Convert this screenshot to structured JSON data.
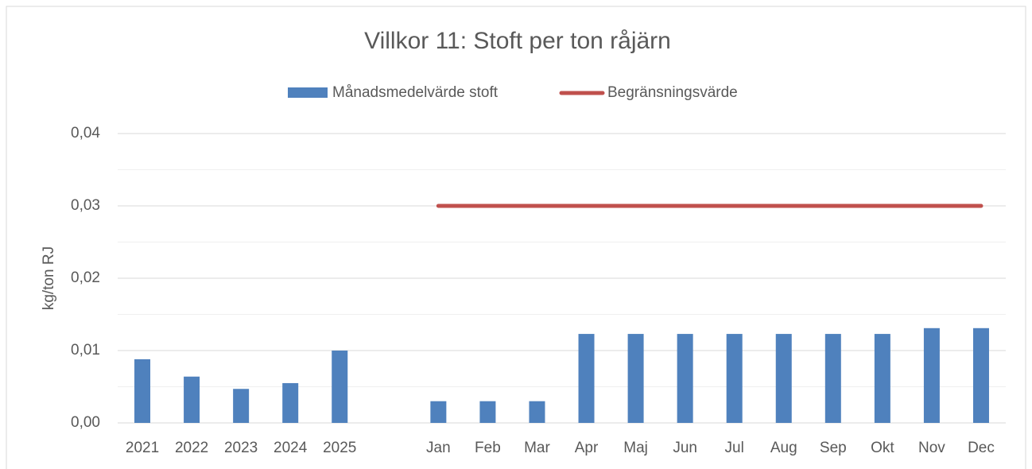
{
  "chart_data": {
    "type": "bar_line",
    "title": "Villkor 11: Stoft per ton råjärn",
    "y_label": "kg/ton RJ",
    "categories": [
      "2021",
      "2022",
      "2023",
      "2024",
      "2025",
      null,
      "Jan",
      "Feb",
      "Mar",
      "Apr",
      "Maj",
      "Jun",
      "Jul",
      "Aug",
      "Sep",
      "Okt",
      "Nov",
      "Dec"
    ],
    "series": [
      {
        "name": "Månadsmedelvärde stoft",
        "type": "bar",
        "color": "#4f81bd",
        "values": [
          0.0088,
          0.0064,
          0.0047,
          0.0055,
          0.01,
          null,
          0.003,
          0.003,
          0.003,
          0.0123,
          0.0123,
          0.0123,
          0.0123,
          0.0123,
          0.0123,
          0.0123,
          0.0131,
          0.0131
        ]
      },
      {
        "name": "Begränsningsvärde",
        "type": "line",
        "color": "#c0504d",
        "values": [
          null,
          null,
          null,
          null,
          null,
          null,
          0.03,
          0.03,
          0.03,
          0.03,
          0.03,
          0.03,
          0.03,
          0.03,
          0.03,
          0.03,
          0.03,
          0.03
        ]
      }
    ],
    "ylim": [
      0,
      0.04
    ],
    "yticks": [
      {
        "value": 0,
        "label": "0,00"
      },
      {
        "value": 0.01,
        "label": "0,01"
      },
      {
        "value": 0.02,
        "label": "0,02"
      },
      {
        "value": 0.03,
        "label": "0,03"
      },
      {
        "value": 0.04,
        "label": "0,04"
      }
    ],
    "yminorticks": [
      0.005,
      0.015,
      0.025,
      0.035
    ],
    "grid": true,
    "legend": "top"
  }
}
